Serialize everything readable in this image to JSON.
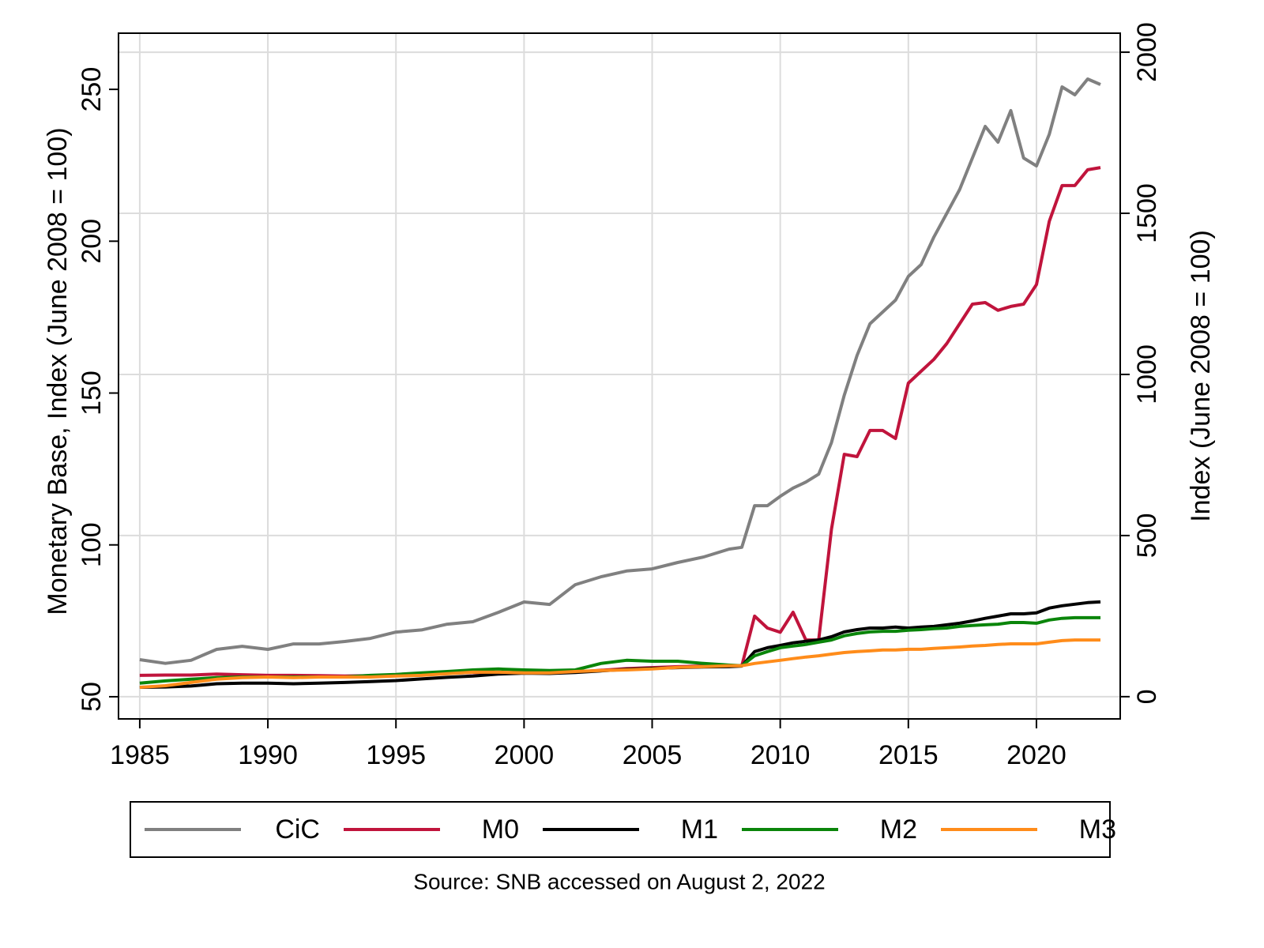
{
  "chart_data": {
    "type": "line",
    "y_label": "Monetary Base, Index (June 2008 = 100)",
    "y2_label": "Index (June 2008 = 100)",
    "note": "Source: SNB accessed on August 2, 2022",
    "x": [
      1985,
      1986,
      1987,
      1988,
      1989,
      1990,
      1991,
      1992,
      1993,
      1994,
      1995,
      1996,
      1997,
      1998,
      1999,
      2000,
      2001,
      2002,
      2003,
      2004,
      2005,
      2006,
      2007,
      2008,
      2008.5,
      2009,
      2009.5,
      2010,
      2010.5,
      2011,
      2011.5,
      2012,
      2012.5,
      2013,
      2013.5,
      2014,
      2014.5,
      2015,
      2015.5,
      2016,
      2016.5,
      2017,
      2017.5,
      2018,
      2018.5,
      2019,
      2019.5,
      2020,
      2020.5,
      2021,
      2021.5,
      2022,
      2022.5
    ],
    "series": [
      {
        "name": "CiC",
        "color": "#808080",
        "axis": "y",
        "values": [
          62.2,
          61,
          62,
          65.6,
          66.6,
          65.6,
          67.4,
          67.4,
          68.2,
          69.2,
          71.3,
          72,
          73.9,
          74.7,
          77.8,
          81.2,
          80.4,
          86.9,
          89.5,
          91.4,
          92.1,
          94.2,
          96,
          98.6,
          99.2,
          112.9,
          112.9,
          116,
          118.7,
          120.7,
          123.3,
          133.7,
          149.3,
          162.4,
          172.8,
          176.7,
          180.6,
          188.4,
          192.3,
          201.4,
          209.2,
          217,
          227.4,
          237.8,
          232.6,
          243,
          227.4,
          224.8,
          235.2,
          250.8,
          248.2,
          253.4,
          251.6
        ]
      },
      {
        "name": "M0",
        "color": "#c0143c",
        "axis": "y2",
        "values": [
          66,
          67,
          67,
          70,
          68,
          66,
          66,
          65,
          64,
          65,
          67,
          70,
          73,
          75,
          75,
          74,
          74,
          76,
          82,
          87,
          90,
          93,
          95,
          96,
          96,
          250,
          213,
          200,
          262,
          176,
          176,
          520,
          752,
          745,
          826,
          826,
          801,
          973,
          1010,
          1047,
          1096,
          1157,
          1218,
          1223,
          1199,
          1211,
          1218,
          1279,
          1475,
          1586,
          1586,
          1635,
          1642
        ]
      },
      {
        "name": "M1",
        "color": "#000000",
        "axis": "y2",
        "values": [
          29,
          30,
          33,
          40,
          42,
          42,
          40,
          42,
          44,
          47,
          50,
          55,
          60,
          64,
          70,
          73,
          72,
          75,
          80,
          85,
          88,
          90,
          92,
          93,
          95,
          140,
          152,
          159,
          167,
          172,
          176,
          186,
          201,
          208,
          213,
          213,
          216,
          213,
          216,
          218,
          223,
          228,
          235,
          243,
          250,
          257,
          257,
          260,
          275,
          282,
          287,
          292,
          294
        ]
      },
      {
        "name": "M2",
        "color": "#0a850a",
        "axis": "y2",
        "values": [
          42,
          49,
          54,
          59,
          61,
          61,
          61,
          61,
          61,
          66,
          69,
          74,
          78,
          83,
          86,
          83,
          81,
          83,
          103,
          113,
          110,
          110,
          103,
          98,
          96,
          127,
          140,
          152,
          157,
          162,
          169,
          176,
          189,
          196,
          201,
          203,
          203,
          206,
          208,
          211,
          213,
          218,
          221,
          223,
          225,
          230,
          230,
          228,
          238,
          243,
          245,
          245,
          245
        ]
      },
      {
        "name": "M3",
        "color": "#ff8c1a",
        "axis": "y2",
        "values": [
          29,
          34,
          44,
          54,
          59,
          61,
          59,
          61,
          61,
          61,
          64,
          66,
          71,
          76,
          76,
          74,
          74,
          78,
          81,
          83,
          86,
          91,
          93,
          96,
          96,
          103,
          108,
          113,
          118,
          123,
          127,
          132,
          137,
          140,
          142,
          145,
          145,
          147,
          147,
          150,
          152,
          154,
          157,
          159,
          162,
          164,
          164,
          164,
          169,
          174,
          176,
          176,
          176
        ]
      }
    ],
    "xlim": [
      1984.17,
      2023.27
    ],
    "xticks": [
      1985,
      1990,
      1995,
      2000,
      2005,
      2010,
      2015,
      2020
    ],
    "ylim": [
      42.7,
      268.5
    ],
    "yticks": [
      50,
      100,
      150,
      200,
      250
    ],
    "y2lim": [
      -69,
      2059
    ],
    "y2ticks": [
      0,
      500,
      1000,
      1500,
      2000
    ],
    "grid": true,
    "grid_axis": "y2",
    "legend": "bottom"
  }
}
